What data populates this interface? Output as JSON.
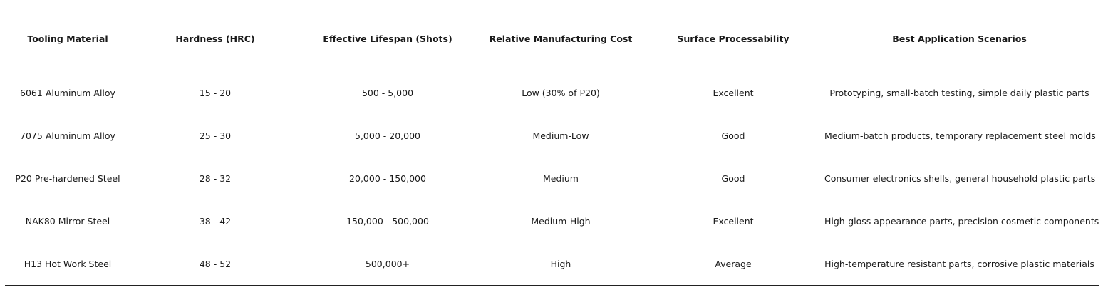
{
  "table": {
    "headers": [
      "Tooling Material",
      "Hardness (HRC)",
      "Effective Lifespan (Shots)",
      "Relative Manufacturing Cost",
      "Surface Processability",
      "Best Application Scenarios"
    ],
    "rows": [
      [
        "6061 Aluminum Alloy",
        "15 - 20",
        "500 - 5,000",
        "Low (30% of P20)",
        "Excellent",
        "Prototyping, small-batch testing, simple daily plastic parts"
      ],
      [
        "7075 Aluminum Alloy",
        "25 - 30",
        "5,000 - 20,000",
        "Medium-Low",
        "Good",
        "Medium-batch products, temporary replacement steel molds"
      ],
      [
        "P20 Pre-hardened Steel",
        "28 - 32",
        "20,000 - 150,000",
        "Medium",
        "Good",
        "Consumer electronics shells, general household plastic parts"
      ],
      [
        "NAK80 Mirror Steel",
        "38 - 42",
        "150,000 - 500,000",
        "Medium-High",
        "Excellent",
        "High-gloss appearance parts, precision cosmetic components"
      ],
      [
        "H13 Hot Work Steel",
        "48 - 52",
        "500,000+",
        "High",
        "Average",
        "High-temperature resistant parts, corrosive plastic materials"
      ]
    ]
  }
}
